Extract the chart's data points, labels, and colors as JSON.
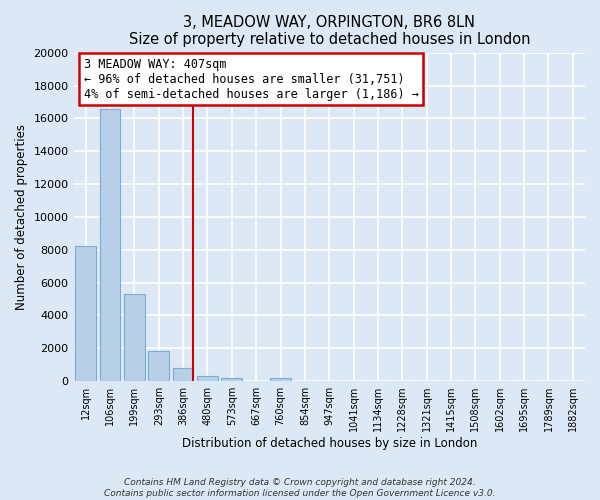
{
  "title": "3, MEADOW WAY, ORPINGTON, BR6 8LN",
  "subtitle": "Size of property relative to detached houses in London",
  "xlabel": "Distribution of detached houses by size in London",
  "ylabel": "Number of detached properties",
  "bar_labels": [
    "12sqm",
    "106sqm",
    "199sqm",
    "293sqm",
    "386sqm",
    "480sqm",
    "573sqm",
    "667sqm",
    "760sqm",
    "854sqm",
    "947sqm",
    "1041sqm",
    "1134sqm",
    "1228sqm",
    "1321sqm",
    "1415sqm",
    "1508sqm",
    "1602sqm",
    "1695sqm",
    "1789sqm",
    "1882sqm"
  ],
  "bar_values": [
    8200,
    16600,
    5300,
    1850,
    800,
    300,
    210,
    0,
    180,
    0,
    0,
    0,
    0,
    0,
    0,
    0,
    0,
    0,
    0,
    0,
    0
  ],
  "bar_color": "#b8cfe8",
  "bar_edge_color": "#7aaed0",
  "vline_x": 4.42,
  "vline_color": "#cc0000",
  "ylim": [
    0,
    20000
  ],
  "yticks": [
    0,
    2000,
    4000,
    6000,
    8000,
    10000,
    12000,
    14000,
    16000,
    18000,
    20000
  ],
  "annotation_title": "3 MEADOW WAY: 407sqm",
  "annotation_line1": "← 96% of detached houses are smaller (31,751)",
  "annotation_line2": "4% of semi-detached houses are larger (1,186) →",
  "annotation_box_color": "#ffffff",
  "annotation_box_edge": "#cc0000",
  "footer_line1": "Contains HM Land Registry data © Crown copyright and database right 2024.",
  "footer_line2": "Contains public sector information licensed under the Open Government Licence v3.0.",
  "bg_color": "#dce8f5",
  "plot_bg_color": "#dce8f5",
  "grid_color": "#ffffff"
}
